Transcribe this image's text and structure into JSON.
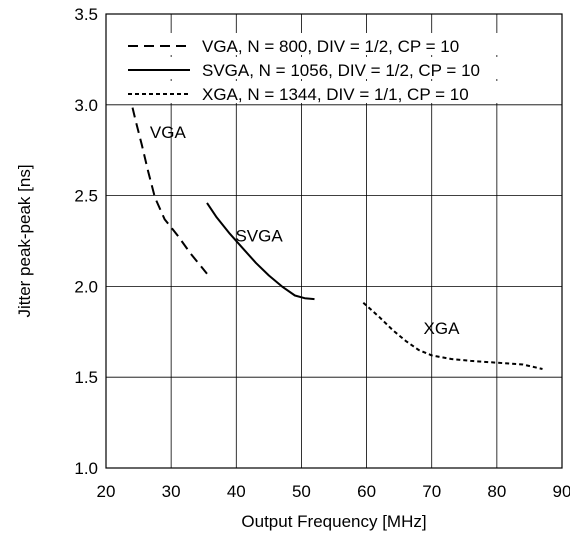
{
  "chart_data": {
    "type": "line",
    "title": "",
    "xlabel": "Output Frequency [MHz]",
    "ylabel": "Jitter peak-peak [ns]",
    "xlim": [
      20,
      90
    ],
    "ylim": [
      1.0,
      3.5
    ],
    "xticks": [
      "20",
      "30",
      "40",
      "50",
      "60",
      "70",
      "80",
      "90"
    ],
    "yticks": [
      "1.0",
      "1.5",
      "2.0",
      "2.5",
      "3.0",
      "3.5"
    ],
    "grid": true,
    "legend_position": "top-right",
    "series": [
      {
        "name": "VGA, N = 800, DIV = 1/2, CP = 10",
        "line_style": "dashed",
        "color": "#000000",
        "x": [
          23.5,
          24.5,
          25.5,
          26.5,
          27.5,
          29,
          31,
          33,
          35.5
        ],
        "y": [
          3.07,
          2.92,
          2.78,
          2.63,
          2.49,
          2.37,
          2.28,
          2.18,
          2.07
        ]
      },
      {
        "name": "SVGA, N = 1056, DIV = 1/2, CP = 10",
        "line_style": "solid",
        "color": "#000000",
        "x": [
          35.5,
          37,
          39,
          41,
          43,
          45,
          47,
          49,
          50.5,
          52
        ],
        "y": [
          2.46,
          2.38,
          2.29,
          2.21,
          2.13,
          2.06,
          2.0,
          1.95,
          1.935,
          1.93
        ]
      },
      {
        "name": "XGA, N = 1344, DIV = 1/1, CP = 10",
        "line_style": "dotted",
        "color": "#000000",
        "x": [
          59.5,
          62,
          64,
          66,
          68,
          70,
          73,
          76,
          80,
          84,
          87
        ],
        "y": [
          1.91,
          1.83,
          1.76,
          1.7,
          1.65,
          1.62,
          1.6,
          1.59,
          1.58,
          1.57,
          1.545
        ]
      }
    ],
    "annotations": [
      {
        "text": "VGA",
        "x": 29.5,
        "y": 2.85
      },
      {
        "text": "SVGA",
        "x": 43.5,
        "y": 2.28
      },
      {
        "text": "XGA",
        "x": 71.5,
        "y": 1.77
      }
    ]
  }
}
